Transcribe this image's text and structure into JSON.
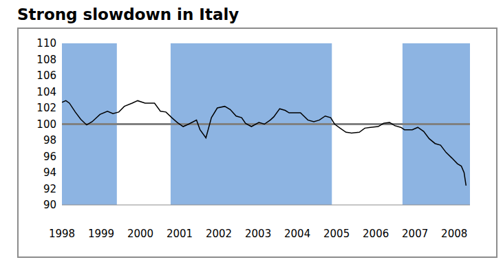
{
  "chart_data": {
    "type": "line",
    "title": "Strong slowdown in Italy",
    "x": [
      1998,
      1998.1,
      1998.19,
      1998.34,
      1998.48,
      1998.63,
      1998.77,
      1998.97,
      1999.16,
      1999.3,
      1999.45,
      1999.59,
      1999.79,
      1999.93,
      2000.12,
      2000.36,
      2000.51,
      2000.65,
      2000.8,
      2000.94,
      2001.09,
      2001.23,
      2001.43,
      2001.52,
      2001.67,
      2001.81,
      2001.96,
      2002.15,
      2002.29,
      2002.44,
      2002.58,
      2002.68,
      2002.83,
      2003.02,
      2003.16,
      2003.31,
      2003.4,
      2003.55,
      2003.69,
      2003.79,
      2004.08,
      2004.27,
      2004.42,
      2004.56,
      2004.71,
      2004.85,
      2004.95,
      2005.09,
      2005.24,
      2005.38,
      2005.58,
      2005.72,
      2005.86,
      2006.06,
      2006.2,
      2006.35,
      2006.49,
      2006.64,
      2006.73,
      2006.93,
      2007.07,
      2007.22,
      2007.36,
      2007.51,
      2007.65,
      2007.79,
      2007.94,
      2008.08,
      2008.18,
      2008.25,
      2008.3
    ],
    "series": [
      {
        "name": "Italy",
        "color": "#000000",
        "values": [
          102.7,
          102.9,
          102.6,
          101.5,
          100.6,
          99.9,
          100.3,
          101.2,
          101.6,
          101.3,
          101.5,
          102.2,
          102.6,
          102.9,
          102.6,
          102.6,
          101.6,
          101.5,
          100.8,
          100.2,
          99.7,
          100.0,
          100.5,
          99.3,
          98.3,
          100.8,
          102.0,
          102.2,
          101.8,
          101.0,
          100.8,
          100.1,
          99.7,
          100.2,
          100.0,
          100.5,
          100.9,
          101.9,
          101.7,
          101.4,
          101.4,
          100.5,
          100.3,
          100.5,
          101.0,
          100.8,
          100.0,
          99.5,
          99.0,
          98.9,
          99.0,
          99.5,
          99.6,
          99.7,
          100.1,
          100.2,
          99.8,
          99.6,
          99.3,
          99.3,
          99.6,
          99.1,
          98.2,
          97.6,
          97.4,
          96.5,
          95.8,
          95.1,
          94.8,
          94.0,
          92.4
        ]
      }
    ],
    "xlim": [
      1998,
      2008.4
    ],
    "xticks": [
      1998,
      1999,
      2000,
      2001,
      2002,
      2003,
      2004,
      2005,
      2006,
      2007,
      2008
    ],
    "ylim": [
      90,
      110
    ],
    "yticks": [
      90,
      92,
      94,
      96,
      98,
      100,
      102,
      104,
      106,
      108,
      110
    ],
    "bands": [
      [
        1998,
        1999.4
      ],
      [
        2000.77,
        2004.88
      ],
      [
        2006.68,
        2008.4
      ]
    ],
    "band_color": "#8db4e2",
    "hline": 100,
    "hline_color": "#808080",
    "grid": false
  }
}
